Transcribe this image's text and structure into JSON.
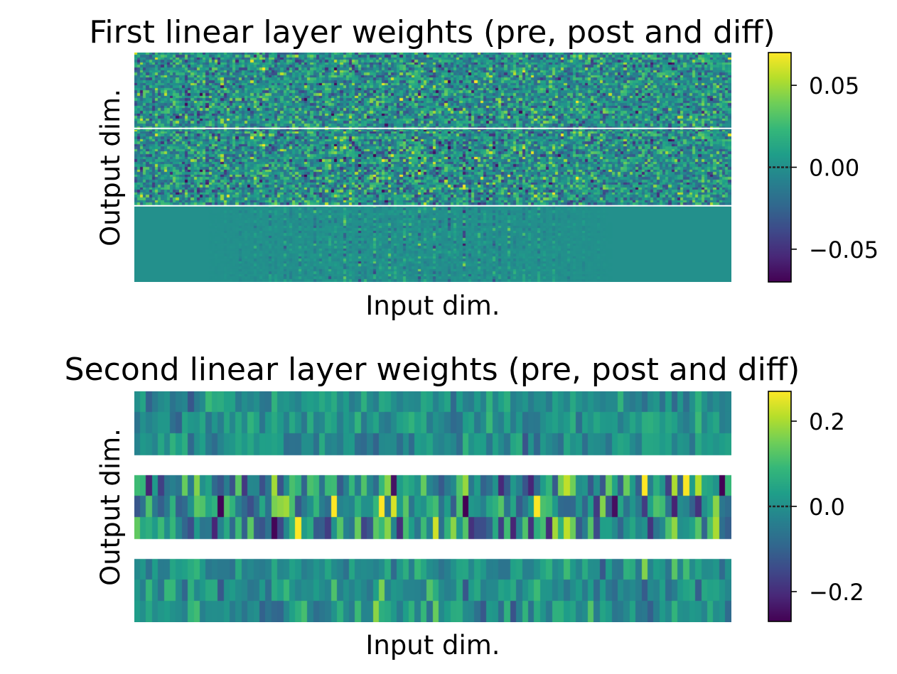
{
  "colors": {
    "colormap": [
      "#440154",
      "#482878",
      "#3e4989",
      "#31688e",
      "#26828e",
      "#1f9e89",
      "#35b779",
      "#6ece58",
      "#b5de2b",
      "#fde725"
    ],
    "separator": "#ffffff",
    "axis": "#000000"
  },
  "chart_data": [
    {
      "type": "heatmap",
      "title": "First linear layer weights (pre, post and diff)",
      "xlabel": "Input dim.",
      "ylabel": "Output dim.",
      "panels": [
        "pre",
        "post",
        "diff"
      ],
      "n_input": 200,
      "n_output_per_panel": 30,
      "value_range": [
        -0.07,
        0.07
      ],
      "colorbar": {
        "ticks": [
          0.05,
          0.0,
          -0.05
        ],
        "tick_labels": [
          "0.05",
          "0.00",
          "−0.05"
        ],
        "range": [
          -0.07,
          0.07
        ],
        "zero_marker": true
      },
      "grid": false
    },
    {
      "type": "heatmap",
      "title": "Second linear layer weights (pre, post and diff)",
      "xlabel": "Input dim.",
      "ylabel": "Output dim.",
      "panels": [
        "pre",
        "post",
        "diff"
      ],
      "n_input": 100,
      "n_output_per_panel": 3,
      "value_range": [
        -0.27,
        0.27
      ],
      "colorbar": {
        "ticks": [
          0.2,
          0.0,
          -0.2
        ],
        "tick_labels": [
          "0.2",
          "0.0",
          "−0.2"
        ],
        "range": [
          -0.27,
          0.27
        ],
        "zero_marker": true
      },
      "grid": false
    }
  ]
}
